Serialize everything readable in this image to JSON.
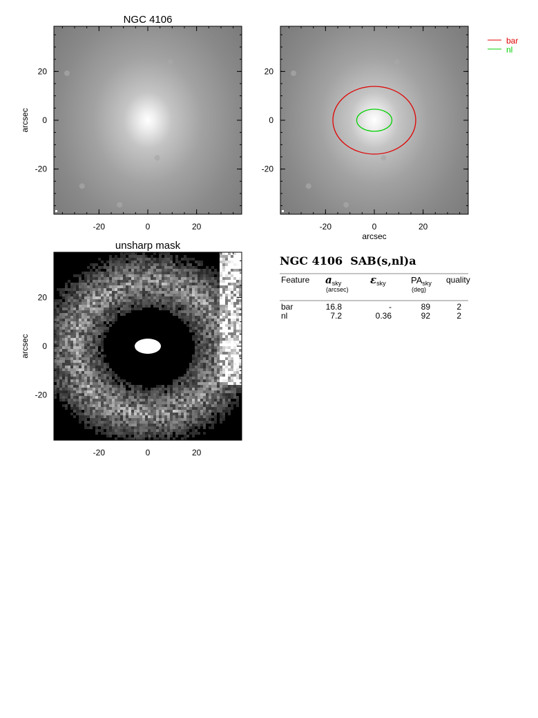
{
  "panels": [
    {
      "title": "NGC 4106",
      "ylabel": "arcsec",
      "xticks": [
        -20,
        0,
        20
      ],
      "yticks": [
        -20,
        0,
        20
      ],
      "image": "galaxy"
    },
    {
      "xlabel": "arcsec",
      "xticks": [
        -20,
        0,
        20
      ],
      "yticks": [
        -20,
        0,
        20
      ],
      "image": "galaxy"
    },
    {
      "title": "unsharp mask",
      "ylabel": "arcsec",
      "xticks": [
        -20,
        0,
        20
      ],
      "yticks": [
        -20,
        0,
        20
      ],
      "image": "mask"
    }
  ],
  "axis_range": [
    -38.5,
    38.5
  ],
  "legend": [
    {
      "label": "bar",
      "color": "#e00000"
    },
    {
      "label": "nl",
      "color": "#00d000"
    }
  ],
  "table": {
    "title": "NGC 4106  SAB(s,nl)a",
    "header": [
      "Feature",
      {
        "symbol": "a",
        "sub": "sky",
        "unit": "(arcsec)"
      },
      {
        "symbol": "ε",
        "sub": "sky"
      },
      {
        "symbol": "PA",
        "sub": "sky",
        "unit": "(deg)"
      },
      "quality"
    ],
    "rows": [
      [
        "bar",
        "16.8",
        "-",
        "89",
        "2"
      ],
      [
        "nl",
        "7.2",
        "0.36",
        "92",
        "2"
      ]
    ]
  }
}
